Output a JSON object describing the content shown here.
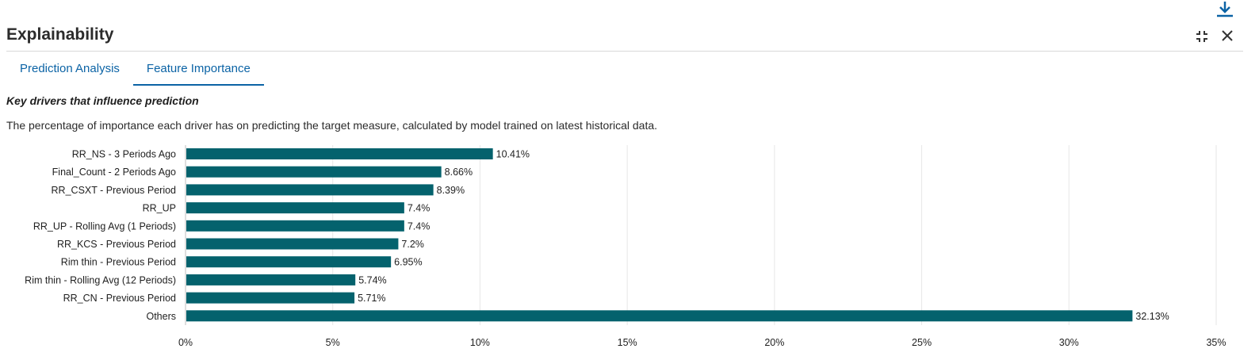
{
  "panel": {
    "title": "Explainability"
  },
  "icons": {
    "download": "download-icon",
    "collapse": "collapse-icon",
    "close": "close-icon"
  },
  "tabs": [
    {
      "label": "Prediction Analysis",
      "active": false
    },
    {
      "label": "Feature Importance",
      "active": true
    }
  ],
  "section": {
    "heading": "Key drivers that influence prediction",
    "description": "The percentage of importance each driver has on predicting the target measure, calculated by model trained on latest historical data."
  },
  "colors": {
    "bar": "#04626d",
    "accent": "#0b63a5",
    "grid": "#e6e6e6"
  },
  "chart_data": {
    "type": "bar",
    "orientation": "horizontal",
    "categories": [
      "RR_NS - 3 Periods Ago",
      "Final_Count - 2 Periods Ago",
      "RR_CSXT - Previous Period",
      "RR_UP",
      "RR_UP - Rolling Avg (1 Periods)",
      "RR_KCS - Previous Period",
      "Rim thin - Previous Period",
      "Rim thin - Rolling Avg (12 Periods)",
      "RR_CN - Previous Period",
      "Others"
    ],
    "values": [
      10.41,
      8.66,
      8.39,
      7.4,
      7.4,
      7.2,
      6.95,
      5.74,
      5.71,
      32.13
    ],
    "value_labels": [
      "10.41%",
      "8.66%",
      "8.39%",
      "7.4%",
      "7.4%",
      "7.2%",
      "6.95%",
      "5.74%",
      "5.71%",
      "32.13%"
    ],
    "xlim": [
      0,
      35
    ],
    "x_ticks": [
      0,
      5,
      10,
      15,
      20,
      25,
      30,
      35
    ],
    "x_tick_labels": [
      "0%",
      "5%",
      "10%",
      "15%",
      "20%",
      "25%",
      "30%",
      "35%"
    ],
    "grid": true,
    "legend": "none"
  }
}
